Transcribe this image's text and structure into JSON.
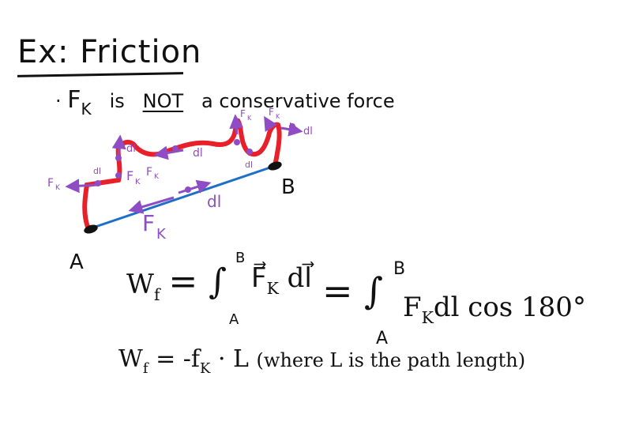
{
  "title": "Ex: Friction",
  "bullet": {
    "marker": "·",
    "force_symbol": "F",
    "force_sub": "K",
    "text_is": "is",
    "text_not": "NOT",
    "text_rest": "a conservative force"
  },
  "diagram": {
    "point_a": "A",
    "point_b": "B",
    "vec_fk": "F",
    "vec_fk_sub": "K",
    "vec_dl": "dl",
    "colors": {
      "path": "#e8202a",
      "line": "#1f6fc8",
      "vector": "#8e4dc4",
      "ink": "#111111"
    }
  },
  "equations": {
    "line1_lhs": "W",
    "line1_lhs_sub": "f",
    "line1_mid": "= ∫",
    "line1_lower": "A",
    "line1_upper": "B",
    "line1_integrand": "F⃗",
    "line1_integrand_sub": "K",
    "line1_dl": "dl⃗",
    "line1_eq2": "= ∫",
    "line1_lower2": "A",
    "line1_upper2": "B",
    "line1_integrand2": "F",
    "line1_integrand2_sub": "K",
    "line1_rest2": "dl cos 180°",
    "line2_lhs": "W",
    "line2_lhs_sub": "f",
    "line2_rhs": "= -f",
    "line2_rhs_sub": "K",
    "line2_rest": "· L",
    "line2_note": "(where L is the path length)"
  }
}
